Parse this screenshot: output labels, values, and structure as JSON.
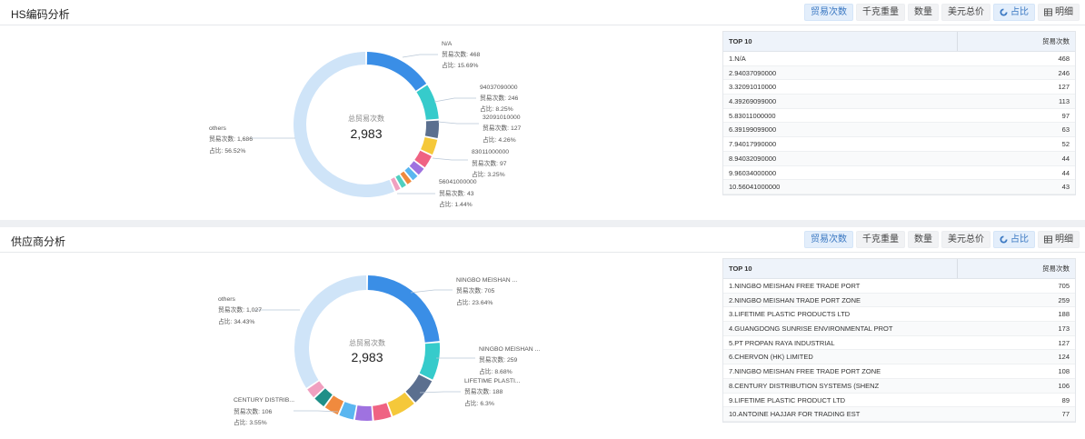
{
  "toolbar": {
    "count_label": "贸易次数",
    "weight_label": "千克重量",
    "qty_label": "数量",
    "usd_label": "美元总价",
    "share_label": "占比",
    "detail_label": "明细"
  },
  "hs": {
    "title": "HS编码分析",
    "center_label": "总贸易次数",
    "center_value": "2,983",
    "table_header_left": "TOP 10",
    "table_header_right": "贸易次数",
    "rows": [
      {
        "name": "1.N/A",
        "value": "468"
      },
      {
        "name": "2.94037090000",
        "value": "246"
      },
      {
        "name": "3.32091010000",
        "value": "127"
      },
      {
        "name": "4.39269099000",
        "value": "113"
      },
      {
        "name": "5.83011000000",
        "value": "97"
      },
      {
        "name": "6.39199099000",
        "value": "63"
      },
      {
        "name": "7.94017990000",
        "value": "52"
      },
      {
        "name": "8.94032090000",
        "value": "44"
      },
      {
        "name": "9.96034000000",
        "value": "44"
      },
      {
        "name": "10.56041000000",
        "value": "43"
      }
    ],
    "labels": [
      {
        "name": "N/A",
        "count": "贸易次数: 468",
        "ratio": "占比: 15.69%"
      },
      {
        "name": "94037090000",
        "count": "贸易次数: 246",
        "ratio": "占比: 8.25%"
      },
      {
        "name": "32091010000",
        "count": "贸易次数: 127",
        "ratio": "占比: 4.26%"
      },
      {
        "name": "83011000000",
        "count": "贸易次数: 97",
        "ratio": "占比: 3.25%"
      },
      {
        "name": "56041000000",
        "count": "贸易次数: 43",
        "ratio": "占比: 1.44%"
      },
      {
        "name": "others",
        "count": "贸易次数: 1,686",
        "ratio": "占比: 56.52%"
      }
    ]
  },
  "sup": {
    "title": "供应商分析",
    "center_label": "总贸易次数",
    "center_value": "2,983",
    "table_header_left": "TOP 10",
    "table_header_right": "贸易次数",
    "rows": [
      {
        "name": "1.NINGBO MEISHAN FREE TRADE PORT",
        "value": "705"
      },
      {
        "name": "2.NINGBO MEISHAN TRADE PORT ZONE",
        "value": "259"
      },
      {
        "name": "3.LIFETIME PLASTIC PRODUCTS LTD",
        "value": "188"
      },
      {
        "name": "4.GUANGDONG SUNRISE ENVIRONMENTAL PROT",
        "value": "173"
      },
      {
        "name": "5.PT PROPAN RAYA INDUSTRIAL",
        "value": "127"
      },
      {
        "name": "6.CHERVON (HK) LIMITED",
        "value": "124"
      },
      {
        "name": "7.NINGBO MEISHAN FREE TRADE PORT ZONE",
        "value": "108"
      },
      {
        "name": "8.CENTURY DISTRIBUTION SYSTEMS (SHENZ",
        "value": "106"
      },
      {
        "name": "9.LIFETIME PLASTIC PRODUCT LTD",
        "value": "89"
      },
      {
        "name": "10.ANTOINE HAJJAR FOR TRADING EST",
        "value": "77"
      }
    ],
    "labels": [
      {
        "name": "NINGBO MEISHAN ...",
        "count": "贸易次数: 705",
        "ratio": "占比: 23.64%"
      },
      {
        "name": "NINGBO MEISHAN ...",
        "count": "贸易次数: 259",
        "ratio": "占比: 8.68%"
      },
      {
        "name": "LIFETIME PLASTI...",
        "count": "贸易次数: 188",
        "ratio": "占比: 6.3%"
      },
      {
        "name": "CENTURY DISTRIB...",
        "count": "贸易次数: 106",
        "ratio": "占比: 3.55%"
      },
      {
        "name": "others",
        "count": "贸易次数: 1,027",
        "ratio": "占比: 34.43%"
      }
    ]
  },
  "chart_data": [
    {
      "type": "pie",
      "title": "HS编码分析",
      "categories": [
        "N/A",
        "94037090000",
        "32091010000",
        "39269099000",
        "83011000000",
        "39199099000",
        "94017990000",
        "94032090000",
        "96034000000",
        "56041000000",
        "others"
      ],
      "values": [
        468,
        246,
        127,
        113,
        97,
        63,
        52,
        44,
        44,
        43,
        1686
      ],
      "colors": [
        "#3a8ee6",
        "#36cbcb",
        "#5b6f8f",
        "#f5c83a",
        "#ef6383",
        "#9f72e0",
        "#5ab6f0",
        "#f08a3e",
        "#4fcfc0",
        "#f0a0c0",
        "#cfe4f8"
      ]
    },
    {
      "type": "pie",
      "title": "供应商分析",
      "categories": [
        "NINGBO MEISHAN FREE TRADE PORT",
        "NINGBO MEISHAN TRADE PORT ZONE",
        "LIFETIME PLASTIC PRODUCTS LTD",
        "GUANGDONG SUNRISE ENVIRONMENTAL PROT",
        "PT PROPAN RAYA INDUSTRIAL",
        "CHERVON (HK) LIMITED",
        "NINGBO MEISHAN FREE TRADE PORT ZONE",
        "CENTURY DISTRIBUTION SYSTEMS (SHENZ",
        "LIFETIME PLASTIC PRODUCT LTD",
        "ANTOINE HAJJAR FOR TRADING EST",
        "others"
      ],
      "values": [
        705,
        259,
        188,
        173,
        127,
        124,
        108,
        106,
        89,
        77,
        1027
      ],
      "colors": [
        "#3a8ee6",
        "#36cbcb",
        "#5b6f8f",
        "#f5c83a",
        "#ef6383",
        "#9f72e0",
        "#5ab6f0",
        "#f08a3e",
        "#1f8f88",
        "#f0a0c0",
        "#cfe4f8"
      ]
    }
  ]
}
